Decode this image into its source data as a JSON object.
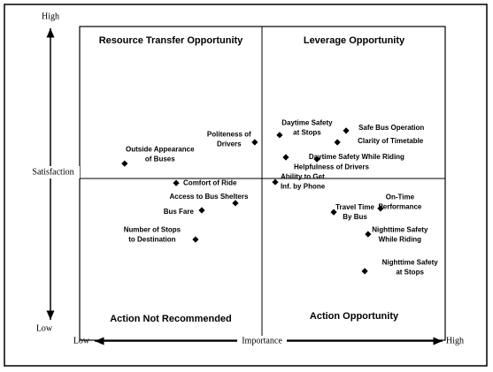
{
  "chart_data": {
    "type": "scatter",
    "x_axis": {
      "title": "Importance",
      "low": "Low",
      "high": "High"
    },
    "y_axis": {
      "title": "Satisfaction",
      "low": "Low",
      "high": "High"
    },
    "quadrants": {
      "top_left": "Resource Transfer Opportunity",
      "top_right": "Leverage Opportunity",
      "bottom_left": "Action Not Recommended",
      "bottom_right": "Action Opportunity"
    },
    "xlim": [
      0,
      10
    ],
    "ylim": [
      0,
      10
    ],
    "color": "#000000",
    "points": [
      {
        "label": [
          "Outside Appearance",
          "of Buses"
        ],
        "x": 1.23,
        "y": 5.63
      },
      {
        "label": [
          "Politeness of",
          "Drivers"
        ],
        "x": 4.79,
        "y": 6.31
      },
      {
        "label": [
          "Daytime Safety",
          "at Stops"
        ],
        "x": 5.47,
        "y": 6.54
      },
      {
        "label": [
          "Safe Bus Operation"
        ],
        "x": 7.29,
        "y": 6.68
      },
      {
        "label": [
          "Clarity of Timetable"
        ],
        "x": 7.05,
        "y": 6.31
      },
      {
        "label": [
          "Daytime Safety While Riding"
        ],
        "x": 5.64,
        "y": 5.83
      },
      {
        "label": [
          "Helpfulness of Drivers"
        ],
        "x": 6.49,
        "y": 5.77
      },
      {
        "label": [
          "Comfort of Ride"
        ],
        "x": 2.64,
        "y": 5.01
      },
      {
        "label": [
          "Access to Bus Shelters"
        ],
        "x": 4.26,
        "y": 4.37
      },
      {
        "label": [
          "Bus Fare"
        ],
        "x": 3.34,
        "y": 4.14
      },
      {
        "label": [
          "Number of Stops",
          "to Destination"
        ],
        "x": 3.17,
        "y": 3.21
      },
      {
        "label": [
          "Ability to Get",
          "Inf. by Phone"
        ],
        "x": 5.35,
        "y": 5.04
      },
      {
        "label": [
          "Travel Time",
          "By Bus"
        ],
        "x": 6.95,
        "y": 4.08
      },
      {
        "label": [
          "On-Time",
          "Performance"
        ],
        "x": 8.23,
        "y": 4.2
      },
      {
        "label": [
          "Nighttime Safety",
          "While Riding"
        ],
        "x": 7.89,
        "y": 3.38
      },
      {
        "label": [
          "Nighttime Safety",
          "at Stops"
        ],
        "x": 7.8,
        "y": 2.2
      }
    ]
  }
}
